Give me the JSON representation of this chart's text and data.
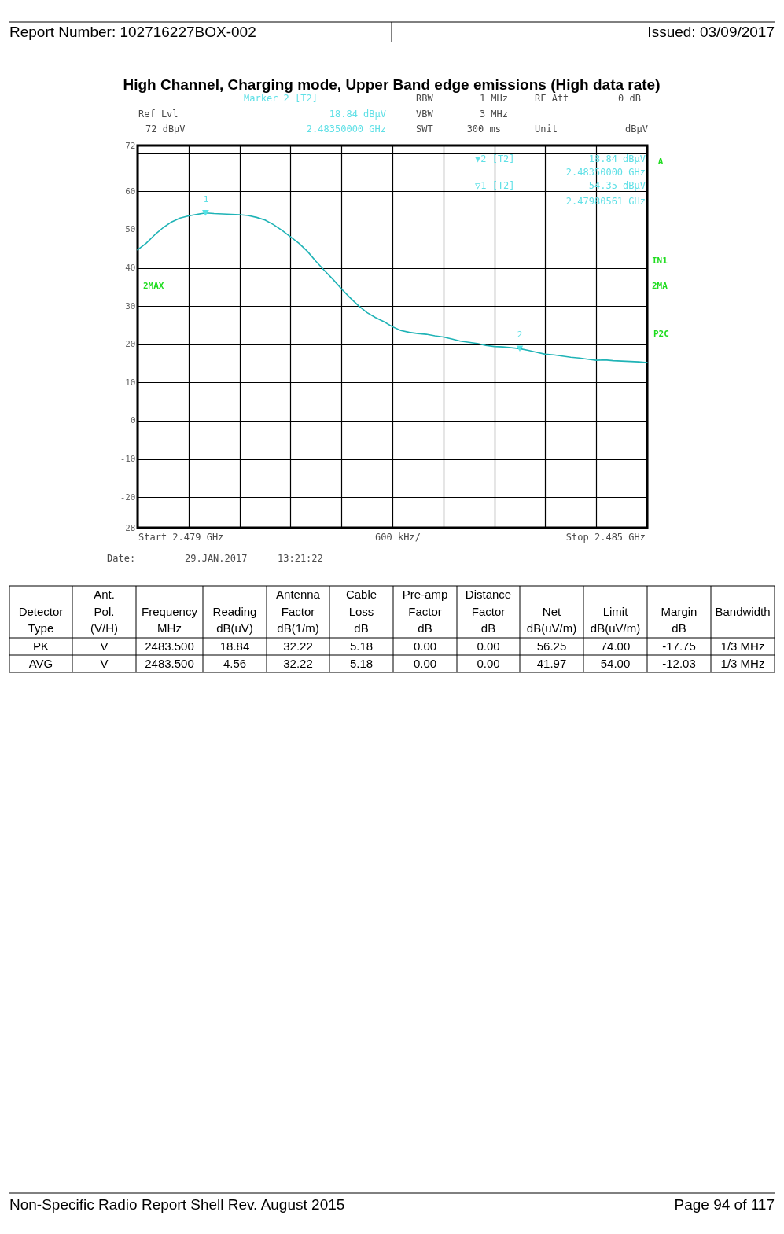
{
  "chart_data": [
    {
      "type": "line",
      "title": "High Channel, Charging mode, Upper Band edge emissions (High data rate)",
      "categories": [
        null,
        null,
        null,
        null,
        null,
        null,
        null,
        null,
        null,
        null,
        null,
        null,
        null,
        null,
        null,
        null,
        null,
        null,
        null,
        null,
        null,
        null,
        null,
        null,
        null,
        null,
        null,
        null,
        null,
        null,
        null,
        null,
        null,
        null,
        null,
        null,
        null,
        null,
        null,
        null,
        null,
        null,
        null,
        null,
        null,
        null,
        null,
        null,
        null,
        null,
        null,
        null,
        null,
        null,
        null,
        null,
        null,
        null,
        null,
        null,
        null
      ],
      "ylim": [
        -28,
        72
      ],
      "yticks": [
        72,
        {
          "value": 70,
          "label": null
        },
        60,
        50,
        40,
        30,
        20,
        10,
        0,
        -10,
        -20,
        -28
      ],
      "tick_labels": "y",
      "grid": true,
      "series": [
        {
          "type": "line",
          "color": "#1fb3b6",
          "values": [
            44.7,
            46.4,
            48.6,
            50.5,
            52.0,
            53.0,
            53.6,
            54.0,
            54.35,
            54.2,
            54.1,
            54.0,
            53.9,
            53.7,
            53.2,
            52.5,
            51.3,
            49.8,
            48.1,
            46.4,
            44.3,
            41.7,
            39.3,
            37.0,
            34.5,
            32.2,
            30.1,
            28.3,
            27.0,
            25.9,
            24.6,
            23.6,
            23.1,
            22.8,
            22.6,
            22.2,
            21.9,
            21.4,
            20.8,
            20.5,
            20.2,
            19.7,
            19.4,
            19.3,
            19.1,
            18.84,
            18.4,
            17.9,
            17.4,
            17.2,
            16.9,
            16.6,
            16.4,
            16.1,
            15.8,
            15.9,
            15.7,
            15.6,
            15.5,
            15.4,
            15.2
          ]
        },
        {
          "type": "scatter",
          "color": "#55e3e6",
          "marker": "triangle",
          "values": [
            null,
            null,
            null,
            null,
            null,
            null,
            null,
            null,
            54.35,
            null,
            null,
            null,
            null,
            null,
            null,
            null,
            null,
            null,
            null,
            null,
            null,
            null,
            null,
            null,
            null,
            null,
            null,
            null,
            null,
            null,
            null,
            null,
            null,
            null,
            null,
            null,
            null,
            null,
            null,
            null,
            null,
            null,
            null,
            null,
            null,
            18.84,
            null,
            null,
            null,
            null,
            null,
            null,
            null,
            null,
            null,
            null,
            null,
            null,
            null,
            null,
            null
          ]
        }
      ],
      "annotations": [
        "Report Number: 102716227BOX-002",
        "Issued: 03/09/2017",
        "Marker 2 [T2]",
        "Ref Lvl",
        "18.84 dBµV",
        "72 dBµV",
        "2.48350000 GHz",
        "RBW",
        "1 MHz",
        "VBW",
        "3 MHz",
        "SWT",
        "300 ms",
        "RF Att",
        "0 dB",
        "Unit",
        "dBµV",
        "▼2 [T2]",
        "18.84 dBµV",
        "2.48350000 GHz",
        "▽1 [T2]",
        "54.35 dBµV",
        "2.47980561 GHz",
        "A",
        "IN1",
        "2MA",
        "P2C",
        "2MAX",
        "1",
        "2",
        "Start 2.479 GHz",
        "600 kHz/",
        "Stop 2.485 GHz",
        "Date:",
        "29.JAN.2017",
        "13:21:22",
        "Non-Specific Radio Report Shell Rev. August 2015",
        "Page 94 of 117"
      ]
    },
    {
      "type": "other",
      "cell_labels": [
        [
          null,
          "Ant.",
          null,
          null,
          "Antenna",
          "Cable",
          "Pre-amp",
          "Distance",
          null,
          null,
          null,
          null
        ],
        [
          "Detector",
          "Pol.",
          "Frequency",
          "Reading",
          "Factor",
          "Loss",
          "Factor",
          "Factor",
          "Net",
          "Limit",
          "Margin",
          "Bandwidth"
        ],
        [
          "Type",
          "(V/H)",
          "MHz",
          "dB(uV)",
          "dB(1/m)",
          "dB",
          "dB",
          "dB",
          "dB(uV/m)",
          "dB(uV/m)",
          "dB",
          null
        ],
        [
          "PK",
          "V",
          "2483.500",
          "18.84",
          "32.22",
          "5.18",
          "0.00",
          "0.00",
          "56.25",
          "74.00",
          "-17.75",
          "1/3 MHz"
        ],
        [
          "AVG",
          "V",
          "2483.500",
          "4.56",
          "32.22",
          "5.18",
          "0.00",
          "0.00",
          "41.97",
          "54.00",
          "-12.03",
          "1/3 MHz"
        ]
      ]
    }
  ]
}
